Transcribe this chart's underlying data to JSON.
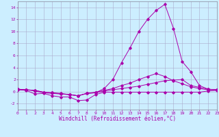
{
  "xlabel": "Windchill (Refroidissement éolien,°C)",
  "background_color": "#cceeff",
  "grid_color": "#aaaacc",
  "line_color": "#aa00aa",
  "xmin": 0,
  "xmax": 23,
  "ymin": -3,
  "ymax": 15,
  "series": [
    {
      "x": [
        0,
        1,
        2,
        3,
        4,
        5,
        6,
        7,
        8,
        9,
        10,
        11,
        12,
        13,
        14,
        15,
        16,
        17,
        18,
        19,
        20,
        21,
        22,
        23
      ],
      "y": [
        0.3,
        0.2,
        -0.4,
        -0.3,
        -0.7,
        -0.9,
        -0.9,
        -1.5,
        -1.4,
        -0.5,
        -0.1,
        -0.1,
        -0.1,
        -0.1,
        -0.1,
        -0.1,
        -0.1,
        -0.1,
        -0.1,
        -0.1,
        -0.1,
        -0.1,
        0.1,
        0.2
      ]
    },
    {
      "x": [
        0,
        1,
        2,
        3,
        4,
        5,
        6,
        7,
        8,
        9,
        10,
        11,
        12,
        13,
        14,
        15,
        16,
        17,
        18,
        19,
        20,
        21,
        22,
        23
      ],
      "y": [
        0.3,
        0.3,
        0.1,
        -0.2,
        -0.3,
        -0.4,
        -0.5,
        -0.7,
        -0.3,
        -0.2,
        0.1,
        0.3,
        0.5,
        0.7,
        0.9,
        1.2,
        1.5,
        1.8,
        1.9,
        2.0,
        1.0,
        0.7,
        0.4,
        0.3
      ]
    },
    {
      "x": [
        0,
        1,
        2,
        3,
        4,
        5,
        6,
        7,
        8,
        9,
        10,
        11,
        12,
        13,
        14,
        15,
        16,
        17,
        18,
        19,
        20,
        21,
        22,
        23
      ],
      "y": [
        0.4,
        0.3,
        0.2,
        -0.1,
        -0.2,
        -0.4,
        -0.5,
        -0.7,
        -0.3,
        -0.1,
        0.2,
        0.5,
        1.0,
        1.4,
        2.0,
        2.5,
        3.0,
        2.5,
        1.8,
        1.3,
        0.8,
        0.5,
        0.3,
        0.3
      ]
    },
    {
      "x": [
        0,
        1,
        2,
        3,
        4,
        5,
        6,
        7,
        8,
        9,
        10,
        11,
        12,
        13,
        14,
        15,
        16,
        17,
        18,
        19,
        20,
        21,
        22,
        23
      ],
      "y": [
        0.4,
        0.3,
        0.2,
        -0.1,
        -0.2,
        -0.3,
        -0.5,
        -0.7,
        -0.3,
        -0.2,
        0.5,
        2.0,
        4.8,
        7.3,
        10.0,
        12.0,
        13.5,
        14.5,
        10.5,
        5.0,
        3.3,
        1.0,
        0.4,
        0.3
      ]
    }
  ],
  "yticks": [
    -2,
    0,
    2,
    4,
    6,
    8,
    10,
    12,
    14
  ],
  "xticks": [
    0,
    1,
    2,
    3,
    4,
    5,
    6,
    7,
    8,
    9,
    10,
    11,
    12,
    13,
    14,
    15,
    16,
    17,
    18,
    19,
    20,
    21,
    22,
    23
  ],
  "tick_fontsize": 4.5,
  "label_fontsize": 5.5
}
